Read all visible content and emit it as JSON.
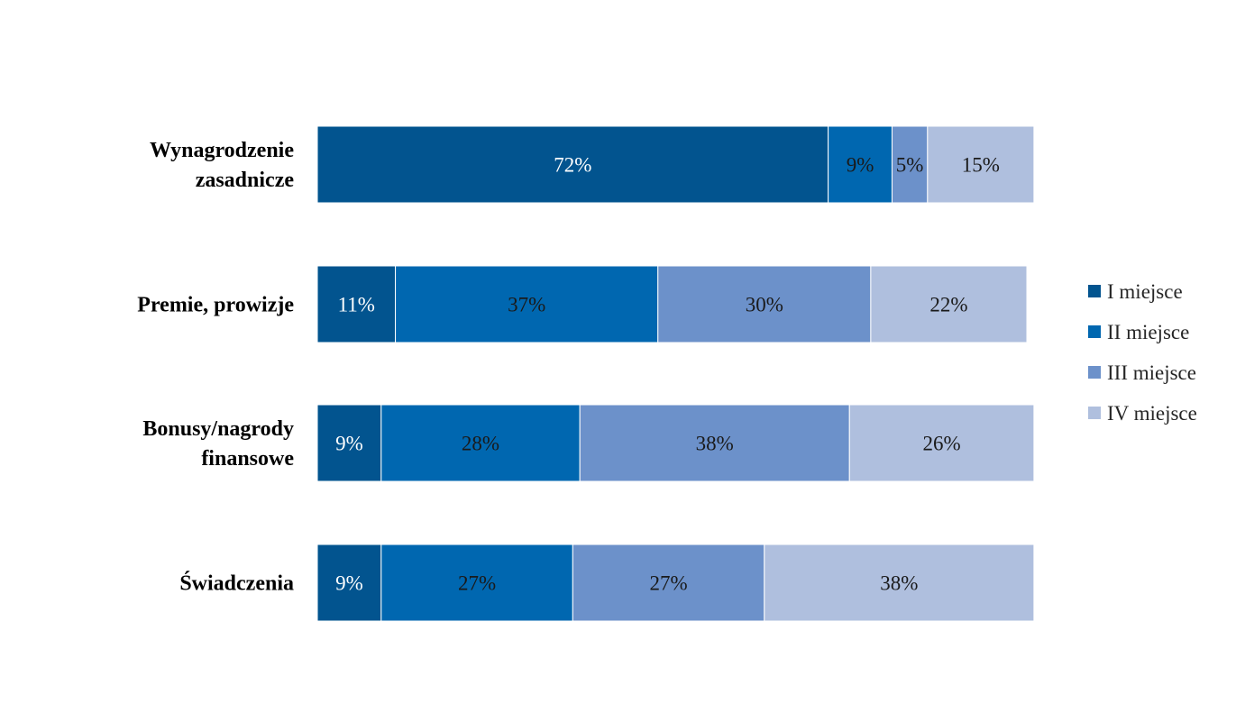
{
  "chart_data": {
    "type": "bar",
    "orientation": "horizontal",
    "stacked": "percent",
    "title": "",
    "xlabel": "",
    "ylabel": "",
    "xlim": [
      0,
      100
    ],
    "grid": false,
    "legend_position": "right",
    "categories": [
      [
        "Wynagrodzenie",
        "zasadnicze"
      ],
      [
        "Premie, prowizje"
      ],
      [
        "Bonusy/nagrody",
        "finansowe"
      ],
      [
        "Świadczenia"
      ]
    ],
    "series": [
      {
        "name": "I miejsce",
        "color": "#02548F",
        "label_color": "#FFFFFF",
        "values": [
          72,
          11,
          9,
          9
        ]
      },
      {
        "name": "II miejsce",
        "color": "#0067B0",
        "label_color": "#1A1A1A",
        "values": [
          9,
          37,
          28,
          27
        ]
      },
      {
        "name": "III miejsce",
        "color": "#6C91CA",
        "label_color": "#1A1A1A",
        "values": [
          5,
          30,
          38,
          27
        ]
      },
      {
        "name": "IV miejsce",
        "color": "#AFBFDE",
        "label_color": "#1A1A1A",
        "values": [
          15,
          22,
          26,
          38
        ]
      }
    ],
    "value_suffix": "%"
  }
}
